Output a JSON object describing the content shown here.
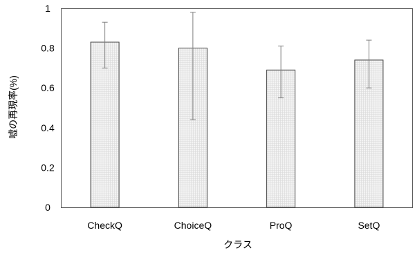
{
  "chart_data": {
    "type": "bar",
    "categories": [
      "CheckQ",
      "ChoiceQ",
      "ProQ",
      "SetQ"
    ],
    "values": [
      0.83,
      0.8,
      0.69,
      0.74
    ],
    "error_bars": [
      {
        "low": 0.7,
        "high": 0.93
      },
      {
        "low": 0.44,
        "high": 0.98
      },
      {
        "low": 0.55,
        "high": 0.81
      },
      {
        "low": 0.6,
        "high": 0.84
      }
    ],
    "xlabel": "クラス",
    "ylabel": "嘘の再現率(%)",
    "ylim": [
      0,
      1
    ],
    "yticks": [
      "0",
      "0.2",
      "0.4",
      "0.6",
      "0.8",
      "1"
    ],
    "grid": false,
    "legend": "none"
  },
  "colors": {
    "bar_fill": "#f3f3f3",
    "bar_pattern_line": "#d9d9d9",
    "bar_border": "#404040",
    "error_bar": "#7f7f7f",
    "plot_frame": "#595959",
    "text": "#000000"
  }
}
